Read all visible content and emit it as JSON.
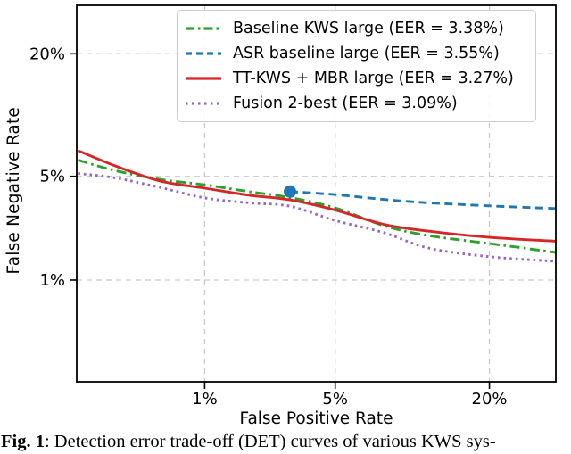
{
  "figure": {
    "caption_label": "Fig. 1",
    "caption_text": ": Detection error trade-off (DET) curves of various KWS sys-"
  },
  "chart_data": {
    "type": "line",
    "title": "",
    "xlabel": "False Positive Rate",
    "ylabel": "False Negative Rate",
    "x_scale": "probit",
    "y_scale": "probit",
    "xlim_percent": [
      0.137,
      31
    ],
    "ylim_percent": [
      0.137,
      30
    ],
    "grid": true,
    "grid_color": "#c9c9c9",
    "spine_color": "#000000",
    "legend_position": "upper right",
    "xticks": {
      "values": [
        1,
        5,
        20
      ],
      "labels": [
        "1%",
        "5%",
        "20%"
      ]
    },
    "yticks": {
      "values": [
        1,
        5,
        20
      ],
      "labels": [
        "1%",
        "5%",
        "20%"
      ]
    },
    "series": [
      {
        "name": "Baseline KWS large (EER = 3.38%)",
        "color": "#2ca02c",
        "style": "dashdot",
        "points": [
          [
            0.14,
            6.2
          ],
          [
            0.26,
            5.4
          ],
          [
            0.52,
            4.8
          ],
          [
            1.0,
            4.45
          ],
          [
            1.8,
            4.05
          ],
          [
            3.0,
            3.72
          ],
          [
            5.0,
            3.2
          ],
          [
            8.2,
            2.45
          ],
          [
            12.3,
            2.1
          ],
          [
            20,
            1.85
          ],
          [
            31,
            1.6
          ]
        ]
      },
      {
        "name": "ASR baseline large (EER = 3.55%)",
        "color": "#1f77b4",
        "style": "dashed",
        "marker": {
          "shape": "circle",
          "at": [
            3.0,
            4.05
          ],
          "radius": 7
        },
        "points": [
          [
            3.0,
            4.05
          ],
          [
            5.0,
            3.88
          ],
          [
            8.2,
            3.62
          ],
          [
            12.3,
            3.45
          ],
          [
            20,
            3.3
          ],
          [
            31,
            3.17
          ]
        ]
      },
      {
        "name": "TT-KWS + MBR large (EER = 3.27%)",
        "color": "#d62728",
        "style": "solid",
        "points": [
          [
            0.14,
            7.0
          ],
          [
            0.26,
            5.75
          ],
          [
            0.52,
            4.7
          ],
          [
            1.0,
            4.25
          ],
          [
            1.8,
            3.85
          ],
          [
            3.0,
            3.6
          ],
          [
            5.0,
            3.1
          ],
          [
            8.2,
            2.5
          ],
          [
            12.3,
            2.25
          ],
          [
            20,
            2.04
          ],
          [
            31,
            1.92
          ]
        ]
      },
      {
        "name": "Fusion 2-best (EER = 3.09%)",
        "color": "#9467bd",
        "style": "dotted",
        "points": [
          [
            0.14,
            5.2
          ],
          [
            0.26,
            4.9
          ],
          [
            0.52,
            4.3
          ],
          [
            1.0,
            3.7
          ],
          [
            1.8,
            3.45
          ],
          [
            3.0,
            3.28
          ],
          [
            5.0,
            2.65
          ],
          [
            8.2,
            2.2
          ],
          [
            12.3,
            1.72
          ],
          [
            20,
            1.49
          ],
          [
            31,
            1.38
          ]
        ]
      }
    ]
  }
}
